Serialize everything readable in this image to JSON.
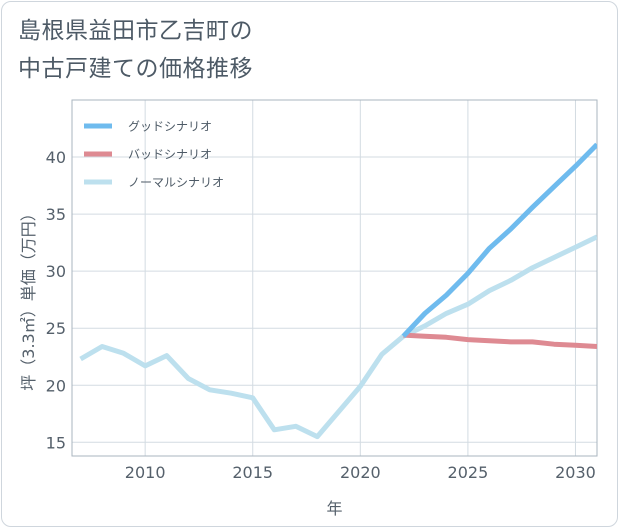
{
  "chart_data": {
    "type": "line",
    "title": [
      "島根県益田市乙吉町の",
      "中古戸建ての価格推移"
    ],
    "xlabel": "年",
    "ylabel": "坪（3.3㎡）単価（万円）",
    "xlim": [
      2006.6,
      2031
    ],
    "ylim": [
      13.8,
      45
    ],
    "xticks": [
      2010,
      2015,
      2020,
      2025,
      2030
    ],
    "yticks": [
      15,
      20,
      25,
      30,
      35,
      40
    ],
    "legend_position": "top-left",
    "series": [
      {
        "name": "グッドシナリオ",
        "color": "#6fbbee",
        "x": [
          2022,
          2023,
          2024,
          2025,
          2026,
          2027,
          2028,
          2029,
          2030,
          2031
        ],
        "y": [
          24.3,
          26.3,
          27.9,
          29.8,
          32.0,
          33.7,
          35.6,
          37.4,
          39.2,
          41.1
        ]
      },
      {
        "name": "バッドシナリオ",
        "color": "#de8a92",
        "x": [
          2022,
          2023,
          2024,
          2025,
          2026,
          2027,
          2028,
          2029,
          2030,
          2031
        ],
        "y": [
          24.4,
          24.3,
          24.2,
          24.0,
          23.9,
          23.8,
          23.8,
          23.6,
          23.5,
          23.4
        ]
      },
      {
        "name": "ノーマルシナリオ",
        "color": "#bde0ee",
        "x": [
          2007,
          2008,
          2009,
          2010,
          2011,
          2012,
          2013,
          2014,
          2015,
          2016,
          2017,
          2018,
          2019,
          2020,
          2021,
          2022,
          2023,
          2024,
          2025,
          2026,
          2027,
          2028,
          2029,
          2030,
          2031
        ],
        "y": [
          22.3,
          23.4,
          22.8,
          21.7,
          22.6,
          20.6,
          19.6,
          19.3,
          18.9,
          16.1,
          16.4,
          15.5,
          17.7,
          19.9,
          22.7,
          24.3,
          25.2,
          26.3,
          27.1,
          28.3,
          29.2,
          30.3,
          31.2,
          32.1,
          33.0
        ]
      }
    ]
  }
}
